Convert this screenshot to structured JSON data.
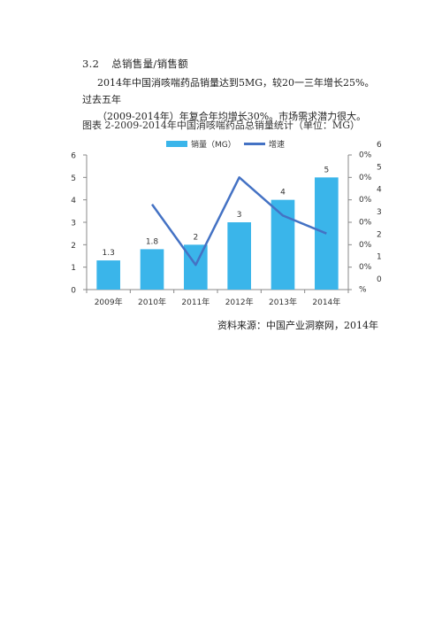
{
  "section": {
    "number": "3.2",
    "title": "总销售量/销售额"
  },
  "paragraph": {
    "line1": "2014年中国消咳喘药品销量达到5MG，较20一三年增长25%。过去五年",
    "line2": "（2009-2014年）年复合年均增长30%。市场需求潜力很大。"
  },
  "caption": "图表 2-2009-2014年中国消咳喘药品总销量统计（单位：MG）",
  "source": "资料来源：中国产业洞察网，2014年",
  "chart_data": {
    "type": "bar",
    "categories": [
      "2009年",
      "2010年",
      "2011年",
      "2012年",
      "2013年",
      "2014年"
    ],
    "series": [
      {
        "name": "销量（MG）",
        "type": "bar",
        "values": [
          1.3,
          1.8,
          2,
          3,
          4,
          5
        ],
        "color": "#3ab5ea"
      },
      {
        "name": "增速",
        "type": "line",
        "values": [
          null,
          3.8,
          1.1,
          5,
          3.3,
          2.5
        ],
        "color": "#4472c4"
      }
    ],
    "data_labels": [
      "1.3",
      "1.8",
      "2",
      "3",
      "4",
      "5"
    ],
    "left_axis": {
      "ylim": [
        0,
        6
      ],
      "ticks": [
        "0",
        "1",
        "2",
        "3",
        "4",
        "5",
        "6"
      ]
    },
    "right_axis": {
      "ylim": [
        0,
        6
      ],
      "ticks": [
        "0",
        "1",
        "2",
        "3",
        "4",
        "5",
        "6"
      ],
      "ticks_suffix": [
        "%",
        "0%",
        "0%",
        "0%",
        "0%",
        "0%",
        "0%"
      ]
    },
    "legend_position": "top",
    "grid": false
  }
}
